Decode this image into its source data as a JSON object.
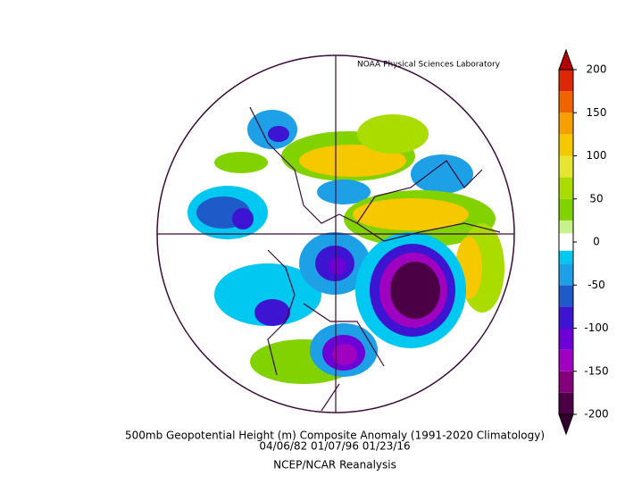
{
  "credit": "NOAA Physical Sciences Laboratory",
  "title": "500mb Geopotential Height (m) Composite Anomaly (1991-2020 Climatology)",
  "dates": "04/06/82 01/07/96 01/23/16",
  "source": "NCEP/NCAR Reanalysis",
  "colorbar": {
    "lim": [
      -200,
      200
    ],
    "ticks": [
      200,
      150,
      100,
      50,
      0,
      -50,
      -100,
      -150,
      -200
    ],
    "levels": [
      -200,
      -175,
      -150,
      -125,
      -100,
      -75,
      -50,
      -25,
      -10,
      10,
      25,
      50,
      75,
      100,
      125,
      150,
      175,
      200
    ],
    "colors": [
      "#4b0046",
      "#82007a",
      "#a000c0",
      "#6c00d6",
      "#3c14d2",
      "#1e5ac8",
      "#1ea0e6",
      "#00c8f0",
      "#ffffff",
      "#c8f08c",
      "#82d200",
      "#aadc00",
      "#e6e632",
      "#f5c800",
      "#f5a000",
      "#f06400",
      "#dc2808"
    ],
    "over_color": "#b40000",
    "under_color": "#32002d"
  }
}
